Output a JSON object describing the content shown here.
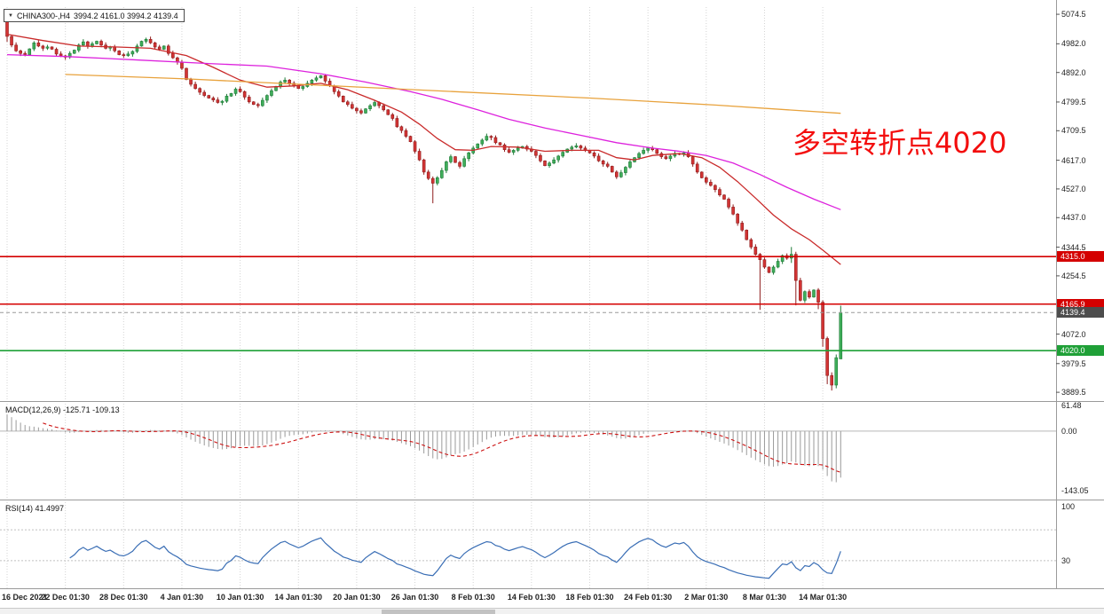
{
  "header": {
    "dropdown_icon": "▼",
    "symbol": "CHINA300-,H4",
    "ohlc": "3994.2 4161.0 3994.2 4139.4"
  },
  "annotation": {
    "text": "多空转折点4020",
    "color": "#f30d0d"
  },
  "colors": {
    "candle_up": "#3fae5a",
    "candle_up_border": "#1e7a37",
    "candle_down": "#d23434",
    "candle_down_border": "#8f1d1d",
    "grid": "#d4d4d4",
    "separator": "#9a9a9a",
    "background": "#ffffff"
  },
  "chart_data": [
    {
      "type": "candlestick",
      "symbol": "CHINA300-,H4",
      "timeframe": "H4",
      "open": 3994.2,
      "high": 4161.0,
      "low": 3994.2,
      "close": 4139.4,
      "x_labels": [
        "16 Dec 2021",
        "22 Dec 01:30",
        "28 Dec 01:30",
        "4 Jan 01:30",
        "10 Jan 01:30",
        "14 Jan 01:30",
        "20 Jan 01:30",
        "26 Jan 01:30",
        "8 Feb 01:30",
        "14 Feb 01:30",
        "18 Feb 01:30",
        "24 Feb 01:30",
        "2 Mar 01:30",
        "8 Mar 01:30",
        "14 Mar 01:30"
      ],
      "candles_per_label": 13,
      "y_ticks": [
        5074.5,
        4982.0,
        4892.0,
        4799.5,
        4709.5,
        4617.0,
        4527.0,
        4437.0,
        4344.5,
        4254.5,
        4072.0,
        3979.5,
        3889.5
      ],
      "y_range": {
        "top": 5097,
        "bottom": 3862
      },
      "price_lines": [
        {
          "value": 4315.0,
          "label": "4315.0",
          "color": "#d40000"
        },
        {
          "value": 4165.9,
          "label": "4165.9",
          "color": "#d40000"
        },
        {
          "value": 4020.0,
          "label": "4020.0",
          "color": "#1fa037"
        }
      ],
      "current_price": {
        "value": 4139.4,
        "label": "4139.4",
        "badge_color": "#4d4d4d"
      },
      "closes": [
        5005,
        4978,
        4960,
        4952,
        4948,
        4966,
        4985,
        4975,
        4968,
        4972,
        4965,
        4950,
        4944,
        4940,
        4952,
        4962,
        4978,
        4988,
        4975,
        4982,
        4990,
        4978,
        4968,
        4972,
        4960,
        4948,
        4945,
        4950,
        4958,
        4975,
        4990,
        4996,
        4985,
        4972,
        4965,
        4975,
        4952,
        4938,
        4925,
        4905,
        4870,
        4855,
        4842,
        4830,
        4820,
        4812,
        4806,
        4798,
        4802,
        4818,
        4826,
        4840,
        4832,
        4815,
        4800,
        4792,
        4788,
        4805,
        4820,
        4835,
        4848,
        4862,
        4868,
        4858,
        4850,
        4842,
        4848,
        4858,
        4868,
        4875,
        4882,
        4865,
        4850,
        4832,
        4818,
        4800,
        4792,
        4780,
        4772,
        4765,
        4778,
        4788,
        4798,
        4788,
        4775,
        4760,
        4748,
        4722,
        4710,
        4692,
        4675,
        4645,
        4618,
        4580,
        4560,
        4545,
        4562,
        4585,
        4612,
        4628,
        4610,
        4598,
        4622,
        4640,
        4655,
        4668,
        4680,
        4692,
        4688,
        4672,
        4665,
        4650,
        4642,
        4648,
        4655,
        4660,
        4652,
        4645,
        4632,
        4615,
        4600,
        4608,
        4618,
        4630,
        4642,
        4652,
        4658,
        4662,
        4655,
        4648,
        4640,
        4630,
        4615,
        4605,
        4598,
        4580,
        4565,
        4578,
        4595,
        4612,
        4625,
        4638,
        4648,
        4655,
        4650,
        4638,
        4628,
        4622,
        4630,
        4638,
        4635,
        4640,
        4628,
        4605,
        4580,
        4562,
        4548,
        4538,
        4525,
        4508,
        4495,
        4470,
        4448,
        4420,
        4398,
        4368,
        4345,
        4322,
        4305,
        4282,
        4265,
        4282,
        4300,
        4318,
        4310,
        4322,
        4240,
        4178,
        4205,
        4188,
        4210,
        4172,
        4058,
        3942,
        3912,
        3998,
        4139.4
      ],
      "ohlc_overrides": {
        "0": [
          5068,
          5074.5,
          4988,
          5005
        ],
        "95": [
          4560,
          4566,
          4482,
          4545
        ],
        "168": [
          4322,
          4326,
          4148,
          4305
        ],
        "175": [
          4310,
          4345,
          4295,
          4322
        ],
        "176": [
          4322,
          4330,
          4162,
          4240
        ],
        "181": [
          4210,
          4216,
          4150,
          4172
        ],
        "182": [
          4172,
          4178,
          4032,
          4058
        ],
        "183": [
          4058,
          4064,
          3915,
          3942
        ],
        "184": [
          3942,
          3952,
          3895,
          3912
        ],
        "185": [
          3912,
          4008,
          3902,
          3998
        ],
        "186": [
          3994.2,
          4161.0,
          3994.2,
          4139.4
        ]
      },
      "ma_lines": [
        {
          "name": "ma-fast-red",
          "color": "#c92a2a",
          "points": [
            [
              0,
              5012
            ],
            [
              8,
              4992
            ],
            [
              16,
              4975
            ],
            [
              24,
              4972
            ],
            [
              32,
              4968
            ],
            [
              40,
              4945
            ],
            [
              46,
              4908
            ],
            [
              52,
              4868
            ],
            [
              58,
              4846
            ],
            [
              64,
              4850
            ],
            [
              70,
              4858
            ],
            [
              76,
              4838
            ],
            [
              82,
              4805
            ],
            [
              88,
              4768
            ],
            [
              92,
              4730
            ],
            [
              96,
              4685
            ],
            [
              100,
              4650
            ],
            [
              104,
              4648
            ],
            [
              108,
              4660
            ],
            [
              114,
              4658
            ],
            [
              120,
              4645
            ],
            [
              126,
              4648
            ],
            [
              132,
              4648
            ],
            [
              136,
              4625
            ],
            [
              140,
              4618
            ],
            [
              144,
              4632
            ],
            [
              150,
              4638
            ],
            [
              155,
              4625
            ],
            [
              159,
              4595
            ],
            [
              163,
              4550
            ],
            [
              167,
              4498
            ],
            [
              171,
              4445
            ],
            [
              175,
              4402
            ],
            [
              179,
              4368
            ],
            [
              182,
              4335
            ],
            [
              186,
              4290
            ]
          ]
        },
        {
          "name": "ma-mid-magenta",
          "color": "#dd22dd",
          "points": [
            [
              0,
              4948
            ],
            [
              13,
              4942
            ],
            [
              28,
              4932
            ],
            [
              45,
              4920
            ],
            [
              58,
              4912
            ],
            [
              70,
              4888
            ],
            [
              80,
              4862
            ],
            [
              90,
              4832
            ],
            [
              97,
              4808
            ],
            [
              105,
              4775
            ],
            [
              112,
              4745
            ],
            [
              120,
              4718
            ],
            [
              128,
              4695
            ],
            [
              136,
              4672
            ],
            [
              144,
              4655
            ],
            [
              150,
              4645
            ],
            [
              156,
              4632
            ],
            [
              162,
              4608
            ],
            [
              168,
              4572
            ],
            [
              174,
              4532
            ],
            [
              180,
              4495
            ],
            [
              186,
              4462
            ]
          ]
        },
        {
          "name": "ma-slow-orange",
          "color": "#e8a23c",
          "points": [
            [
              13,
              4886
            ],
            [
              40,
              4872
            ],
            [
              70,
              4852
            ],
            [
              100,
              4832
            ],
            [
              130,
              4812
            ],
            [
              158,
              4790
            ],
            [
              186,
              4764
            ]
          ]
        }
      ]
    },
    {
      "type": "macd_histogram",
      "label": "MACD(12,26,9)",
      "values_text": "-125.71 -109.13",
      "params": {
        "fast": 12,
        "slow": 26,
        "signal_period": 9
      },
      "y_ticks": [
        "61.48",
        "0.00",
        "-143.05"
      ],
      "y_range": {
        "top": 66,
        "bottom": -165
      },
      "start_macd": 45,
      "histogram_color": "#9a9a9a",
      "signal_color": "#cc1111"
    },
    {
      "type": "rsi",
      "label": "RSI(14)",
      "value_text": "41.4997",
      "period": 14,
      "y_ticks": [
        "100",
        "30"
      ],
      "levels": [
        70,
        30
      ],
      "y_range": {
        "top": 106,
        "bottom": -6
      },
      "line_color": "#3a6eb5"
    }
  ]
}
